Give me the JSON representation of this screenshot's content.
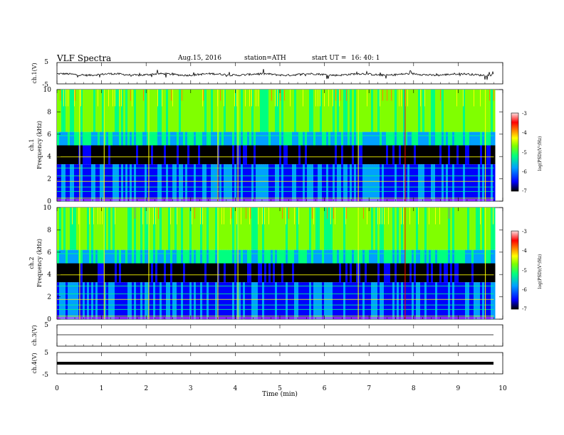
{
  "header": {
    "title": "VLF  Spectra",
    "date": "Aug.15, 2016",
    "station": "station=ATH",
    "start_label": "start  UT  =",
    "start_time": "16: 40: 1"
  },
  "chart_data": [
    {
      "type": "line",
      "panel": "ch1-waveform",
      "ylabel": "ch.1(V)",
      "ylim": [
        -5,
        5
      ],
      "yticks": [
        "5",
        "-5"
      ],
      "baseline_value": -0.6,
      "color": "#000000"
    },
    {
      "type": "heatmap",
      "panel": "ch1-spectrogram",
      "ylabel_channel": "ch.1",
      "ylabel": "Frequency  (kHz)",
      "ylim": [
        0,
        10
      ],
      "yticks": [
        "0",
        "2",
        "4",
        "6",
        "8",
        "10"
      ],
      "colorbar": {
        "label": "log(PSD)(V²/Hz)",
        "range": [
          -7,
          -3
        ],
        "ticks": [
          "-3",
          "-4",
          "-5",
          "-6",
          "-7"
        ],
        "colors": [
          "#000000",
          "#0000ff",
          "#00a0ff",
          "#00ff80",
          "#80ff00",
          "#ffff00",
          "#ff8000",
          "#ff0000",
          "#ffe0e0"
        ]
      }
    },
    {
      "type": "heatmap",
      "panel": "ch2-spectrogram",
      "ylabel_channel": "ch.2",
      "ylabel": "Frequency  (kHz)",
      "ylim": [
        0,
        10
      ],
      "yticks": [
        "0",
        "2",
        "4",
        "6",
        "8",
        "10"
      ],
      "colorbar": {
        "label": "log(PSD)(V²/Hz)",
        "range": [
          -7,
          -3
        ],
        "ticks": [
          "-3",
          "-4",
          "-5",
          "-6",
          "-7"
        ]
      }
    },
    {
      "type": "line",
      "panel": "ch3-waveform",
      "ylabel": "ch.3(V)",
      "ylim": [
        -5,
        5
      ],
      "yticks": [
        "5"
      ],
      "values_constant": 0
    },
    {
      "type": "line",
      "panel": "ch4-waveform",
      "ylabel": "ch.4(V)",
      "ylim": [
        -5,
        5
      ],
      "yticks": [
        "5",
        "-5"
      ],
      "values_constant": 0
    }
  ],
  "xaxis": {
    "label": "Time  (min)",
    "xlim": [
      0,
      10
    ],
    "ticks": [
      "0",
      "1",
      "2",
      "3",
      "4",
      "5",
      "6",
      "7",
      "8",
      "9",
      "10"
    ],
    "data_end": 9.8
  }
}
